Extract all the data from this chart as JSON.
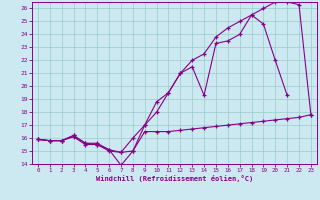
{
  "xlabel": "Windchill (Refroidissement éolien,°C)",
  "bg_color": "#cce8f0",
  "line_color": "#880088",
  "grid_color": "#99cccc",
  "xlim_min": -0.5,
  "xlim_max": 23.5,
  "ylim_min": 14,
  "ylim_max": 26.5,
  "xticks": [
    0,
    1,
    2,
    3,
    4,
    5,
    6,
    7,
    8,
    9,
    10,
    11,
    12,
    13,
    14,
    15,
    16,
    17,
    18,
    19,
    20,
    21,
    22,
    23
  ],
  "yticks": [
    14,
    15,
    16,
    17,
    18,
    19,
    20,
    21,
    22,
    23,
    24,
    25,
    26
  ],
  "line1_x": [
    0,
    1,
    2,
    3,
    4,
    5,
    6,
    7,
    8,
    9,
    10,
    11,
    12,
    13,
    14,
    15,
    16,
    17,
    18,
    19,
    20,
    21,
    22,
    23
  ],
  "line1_y": [
    15.9,
    15.8,
    15.8,
    16.1,
    15.5,
    15.5,
    15.0,
    14.9,
    15.0,
    16.5,
    16.5,
    16.5,
    16.6,
    16.7,
    16.8,
    16.9,
    17.0,
    17.1,
    17.2,
    17.3,
    17.4,
    17.5,
    17.6,
    17.8
  ],
  "line2_x": [
    0,
    1,
    2,
    3,
    4,
    5,
    6,
    7,
    8,
    9,
    10,
    11,
    12,
    13,
    14,
    15,
    16,
    17,
    18,
    19,
    20,
    21
  ],
  "line2_y": [
    15.9,
    15.8,
    15.8,
    16.2,
    15.6,
    15.5,
    15.1,
    13.9,
    15.0,
    17.0,
    18.0,
    19.5,
    21.0,
    21.5,
    19.3,
    23.3,
    23.5,
    24.0,
    25.5,
    24.8,
    22.0,
    19.3
  ],
  "line3_x": [
    0,
    1,
    2,
    3,
    4,
    5,
    6,
    7,
    8,
    9,
    10,
    11,
    12,
    13,
    14,
    15,
    16,
    17,
    18,
    19,
    20,
    21,
    22,
    23
  ],
  "line3_y": [
    15.9,
    15.8,
    15.8,
    16.2,
    15.6,
    15.6,
    15.1,
    14.9,
    16.0,
    17.0,
    18.8,
    19.5,
    21.0,
    22.0,
    22.5,
    23.8,
    24.5,
    25.0,
    25.5,
    26.0,
    26.5,
    26.5,
    26.3,
    17.8
  ]
}
